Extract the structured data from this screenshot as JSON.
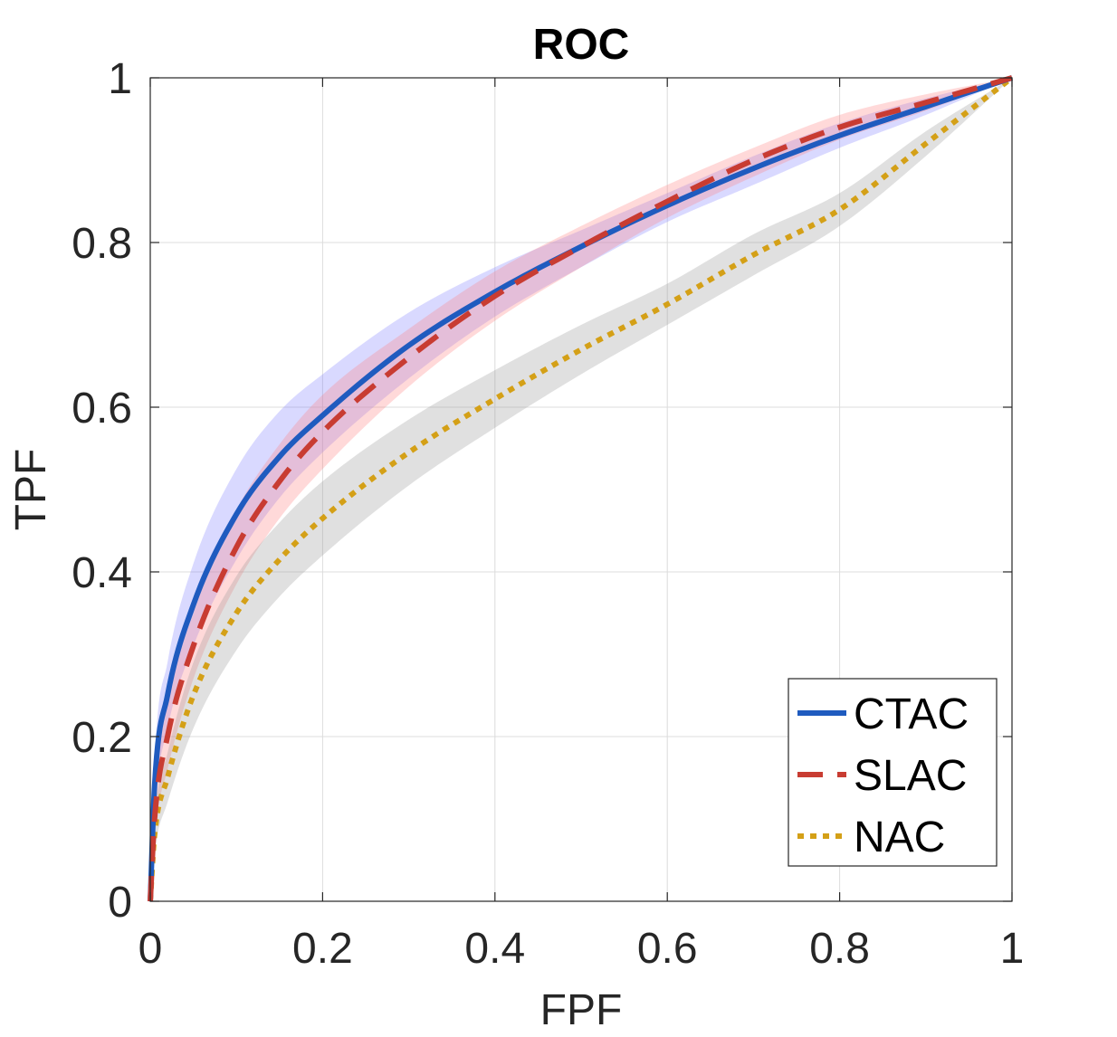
{
  "chart_data": {
    "type": "line",
    "title": "ROC",
    "xlabel": "FPF",
    "ylabel": "TPF",
    "xlim": [
      0,
      1
    ],
    "ylim": [
      0,
      1
    ],
    "grid": true,
    "legend_position": "bottom-right",
    "x_ticks": [
      0,
      0.2,
      0.4,
      0.6,
      0.8,
      1
    ],
    "y_ticks": [
      0,
      0.2,
      0.4,
      0.6,
      0.8,
      1
    ],
    "x_tick_labels": [
      "0",
      "0.2",
      "0.4",
      "0.6",
      "0.8",
      "1"
    ],
    "y_tick_labels": [
      "0",
      "0.2",
      "0.4",
      "0.6",
      "0.8",
      "1"
    ],
    "series": [
      {
        "name": "CTAC",
        "style": "solid",
        "color": "#1F5BBF",
        "band_color": "#8080FF",
        "x": [
          0,
          0.005,
          0.02,
          0.05,
          0.1,
          0.15,
          0.2,
          0.3,
          0.4,
          0.5,
          0.6,
          0.7,
          0.8,
          0.9,
          1.0
        ],
        "y": [
          0,
          0.14,
          0.25,
          0.36,
          0.47,
          0.54,
          0.59,
          0.675,
          0.74,
          0.795,
          0.845,
          0.89,
          0.93,
          0.965,
          1.0
        ],
        "lower": [
          0,
          0.11,
          0.21,
          0.31,
          0.415,
          0.49,
          0.545,
          0.635,
          0.71,
          0.77,
          0.825,
          0.87,
          0.915,
          0.955,
          1.0
        ],
        "upper": [
          0,
          0.17,
          0.29,
          0.41,
          0.525,
          0.595,
          0.64,
          0.715,
          0.77,
          0.815,
          0.86,
          0.905,
          0.945,
          0.975,
          1.0
        ]
      },
      {
        "name": "SLAC",
        "style": "dashed",
        "color": "#C83C32",
        "band_color": "#FF8080",
        "x": [
          0,
          0.005,
          0.02,
          0.05,
          0.1,
          0.15,
          0.2,
          0.3,
          0.4,
          0.5,
          0.6,
          0.7,
          0.8,
          0.9,
          1.0
        ],
        "y": [
          0,
          0.1,
          0.2,
          0.31,
          0.43,
          0.51,
          0.57,
          0.66,
          0.735,
          0.795,
          0.85,
          0.9,
          0.94,
          0.97,
          1.0
        ],
        "lower": [
          0,
          0.08,
          0.16,
          0.27,
          0.385,
          0.465,
          0.525,
          0.625,
          0.705,
          0.77,
          0.83,
          0.88,
          0.925,
          0.96,
          1.0
        ],
        "upper": [
          0,
          0.12,
          0.24,
          0.35,
          0.475,
          0.555,
          0.615,
          0.695,
          0.765,
          0.82,
          0.87,
          0.915,
          0.955,
          0.98,
          1.0
        ]
      },
      {
        "name": "NAC",
        "style": "dotted",
        "color": "#D4A017",
        "band_color": "#999999",
        "x": [
          0,
          0.005,
          0.02,
          0.05,
          0.1,
          0.15,
          0.2,
          0.3,
          0.4,
          0.5,
          0.6,
          0.7,
          0.8,
          0.9,
          1.0
        ],
        "y": [
          0,
          0.08,
          0.15,
          0.25,
          0.35,
          0.415,
          0.465,
          0.545,
          0.61,
          0.67,
          0.725,
          0.785,
          0.84,
          0.92,
          1.0
        ],
        "lower": [
          0,
          0.06,
          0.12,
          0.21,
          0.305,
          0.37,
          0.42,
          0.505,
          0.575,
          0.64,
          0.7,
          0.76,
          0.82,
          0.905,
          1.0
        ],
        "upper": [
          0,
          0.1,
          0.18,
          0.29,
          0.395,
          0.46,
          0.51,
          0.585,
          0.645,
          0.7,
          0.75,
          0.81,
          0.86,
          0.935,
          1.0
        ]
      }
    ]
  }
}
